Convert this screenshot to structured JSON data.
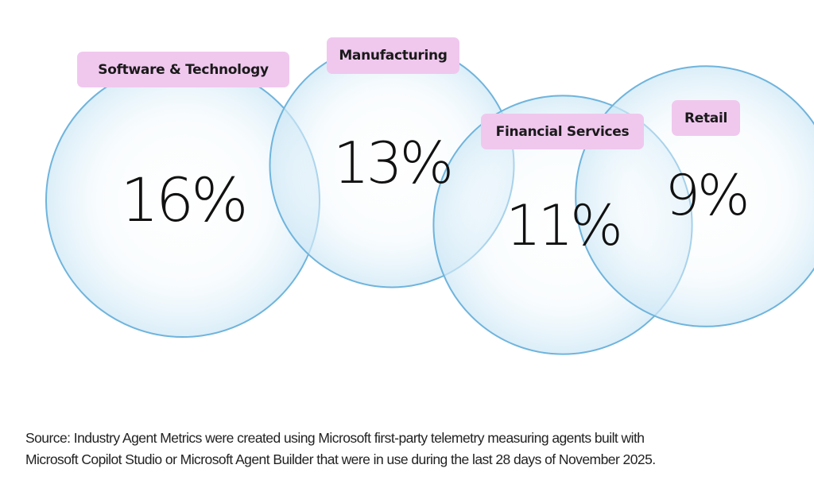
{
  "chart_data": {
    "type": "bubble",
    "title": "",
    "categories": [
      "Software & Technology",
      "Manufacturing",
      "Financial Services",
      "Retail"
    ],
    "values": [
      16,
      13,
      11,
      9
    ],
    "value_labels": [
      "16%",
      "13%",
      "11%",
      "9%"
    ],
    "unit": "%",
    "legend": "none",
    "grid": false
  },
  "colors": {
    "bubble_stroke": "#6fb4dc",
    "bubble_fill_edge": "#d6ecf8",
    "bubble_fill_center": "#ffffff",
    "label_bg": "#f0c8ee",
    "text": "#111111"
  },
  "source_note": {
    "line1": "Source: Industry Agent Metrics were created using Microsoft first-party telemetry measuring agents built with",
    "line2": "Microsoft Copilot Studio or Microsoft Agent Builder that were in use during the last 28 days of November 2025."
  }
}
